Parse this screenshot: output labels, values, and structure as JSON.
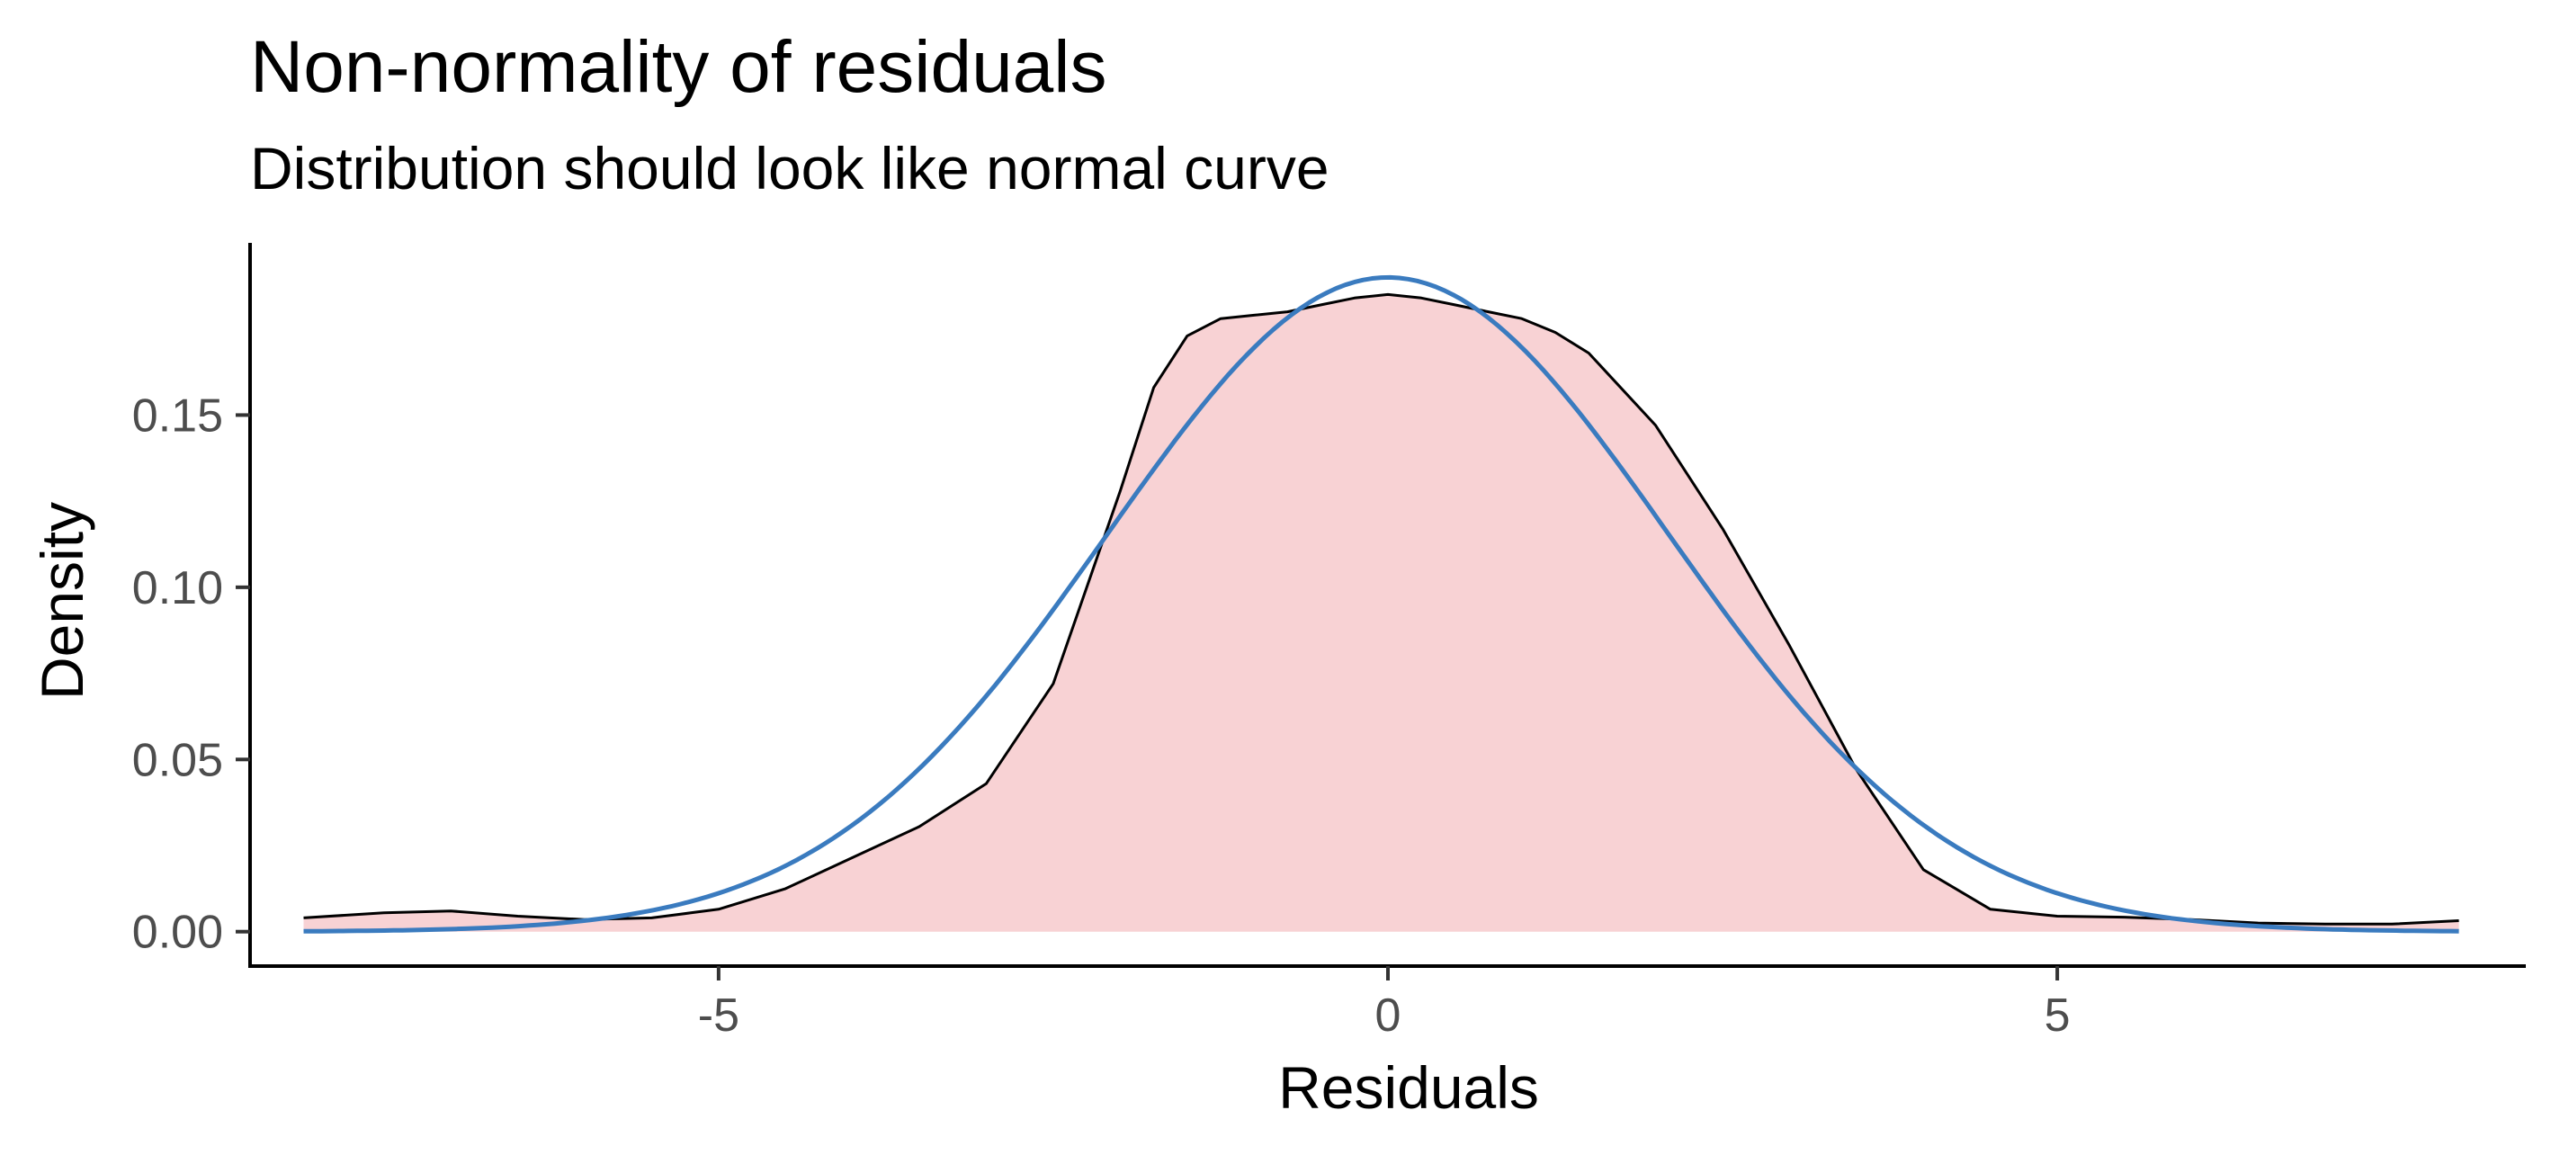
{
  "chart_data": {
    "type": "area",
    "title": "Non-normality of residuals",
    "subtitle": "Distribution should look like normal curve",
    "xlabel": "Residuals",
    "ylabel": "Density",
    "xlim": [
      -8.5,
      8.5
    ],
    "ylim": [
      -0.01,
      0.2
    ],
    "xticks": [
      -5,
      0,
      5
    ],
    "xtick_labels": [
      "-5",
      "0",
      "5"
    ],
    "yticks": [
      0,
      0.05,
      0.1,
      0.15
    ],
    "ytick_labels": [
      "0.00",
      "0.05",
      "0.10",
      "0.15"
    ],
    "grid": false,
    "series": [
      {
        "kind": "density",
        "color": "#000000",
        "fill": "#f8d2d4",
        "x": [
          -8.1,
          -7.5,
          -7.0,
          -6.5,
          -6.0,
          -5.5,
          -5.0,
          -4.5,
          -4.0,
          -3.5,
          -3.0,
          -2.5,
          -2.0,
          -1.75,
          -1.5,
          -1.25,
          -1.0,
          -0.75,
          -0.5,
          -0.25,
          0.0,
          0.25,
          0.5,
          0.75,
          1.0,
          1.25,
          1.5,
          2.0,
          2.5,
          3.0,
          3.5,
          4.0,
          4.5,
          5.0,
          5.5,
          6.0,
          6.5,
          7.0,
          7.5,
          8.0
        ],
        "y": [
          0.004,
          0.0055,
          0.006,
          0.0045,
          0.0035,
          0.004,
          0.0065,
          0.0125,
          0.0215,
          0.0305,
          0.043,
          0.072,
          0.128,
          0.158,
          0.173,
          0.178,
          0.179,
          0.18,
          0.182,
          0.184,
          0.185,
          0.184,
          0.182,
          0.18,
          0.178,
          0.174,
          0.168,
          0.147,
          0.117,
          0.083,
          0.047,
          0.018,
          0.0065,
          0.0045,
          0.0042,
          0.0035,
          0.0025,
          0.0022,
          0.0022,
          0.0032
        ]
      },
      {
        "kind": "normal",
        "color": "#3a7bbf",
        "mean": 0,
        "sd": 2.1
      }
    ]
  }
}
